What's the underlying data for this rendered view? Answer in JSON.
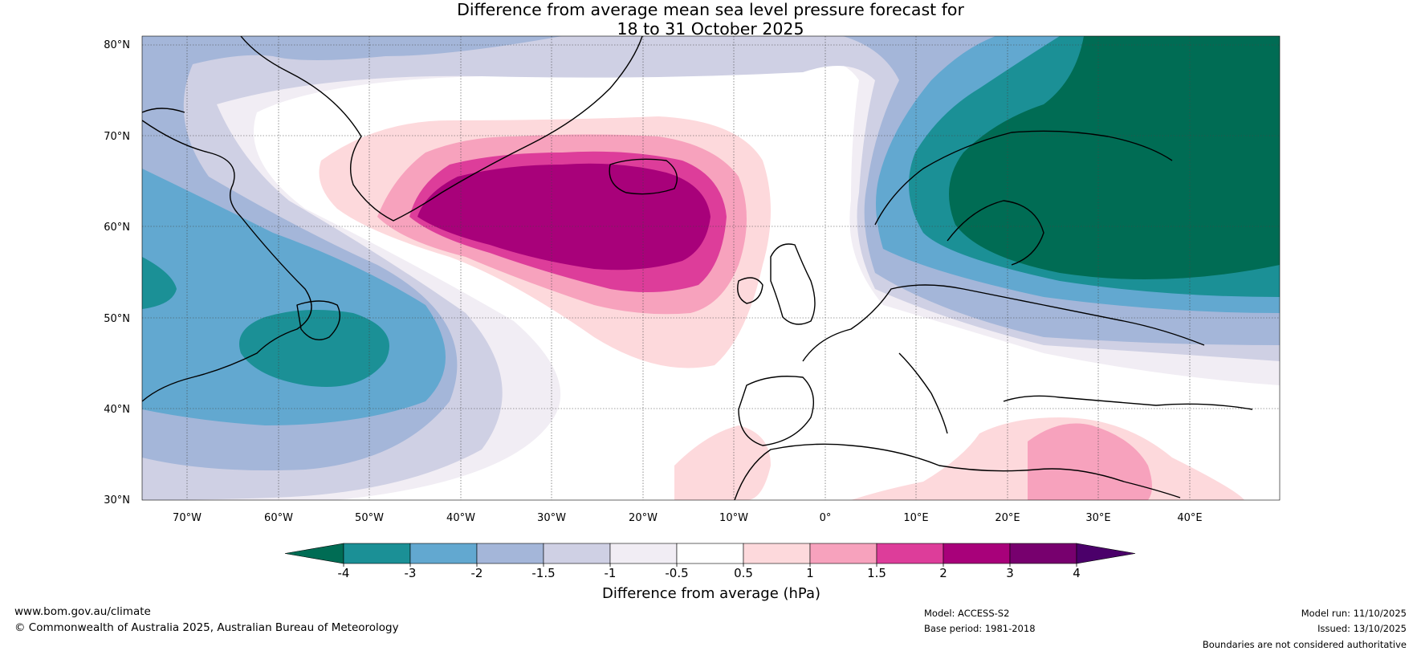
{
  "title": {
    "line1": "Difference from average mean sea level pressure forecast for",
    "line2": "18 to 31 October 2025"
  },
  "map": {
    "lat_labels": [
      "80°N",
      "70°N",
      "60°N",
      "50°N",
      "40°N",
      "30°N"
    ],
    "lon_labels": [
      "70°W",
      "60°W",
      "50°W",
      "40°W",
      "30°W",
      "20°W",
      "10°W",
      "0°",
      "10°E",
      "20°E",
      "30°E",
      "40°E"
    ],
    "extent": {
      "lon_min": -75,
      "lon_max": 50,
      "lat_min": 30,
      "lat_max": 81
    }
  },
  "colorbar": {
    "tick_labels": [
      "-4",
      "-3",
      "-2",
      "-1.5",
      "-1",
      "-0.5",
      "0.5",
      "1",
      "1.5",
      "2",
      "3",
      "4"
    ],
    "label": "Difference from average (hPa)",
    "colors": [
      "#006c54",
      "#1b9096",
      "#62a8d0",
      "#a4b6d9",
      "#cfd0e4",
      "#f1edf4",
      "#ffffff",
      "#fdd9dc",
      "#f7a2bd",
      "#dd3d9a",
      "#a8017a",
      "#77006e",
      "#4b006a"
    ]
  },
  "footer": {
    "website": "www.bom.gov.au/climate",
    "copyright": "© Commonwealth of Australia 2025, Australian Bureau of Meteorology",
    "model": "Model: ACCESS-S2",
    "base_period": "Base period: 1981-2018",
    "model_run": "Model run: 11/10/2025",
    "issued": "Issued: 13/10/2025",
    "disclaimer": "Boundaries are not considered authoritative"
  }
}
